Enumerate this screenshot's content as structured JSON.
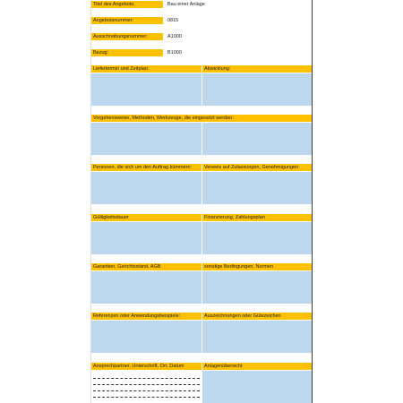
{
  "fields": [
    {
      "label": "Titel des Angebots:",
      "value": "Bau einer Anlage"
    },
    {
      "label": "Angebotsnummer:",
      "value": "0815"
    },
    {
      "label": "Ausschreibungsnummer:",
      "value": "A1000"
    },
    {
      "label": "Bezug:",
      "value": "B1000"
    }
  ],
  "sections": [
    {
      "left": "Liefertermin und Zeitplan:",
      "right": "Abwicklung:"
    },
    {
      "full": "Vorgehensweise, Methoden, Werkzeuge, die eingesetzt werden:"
    },
    {
      "left": " Personen, die sich um den Auftrag kümmern:",
      "right": "Verweis auf Zulassungen, Genehmigungen"
    },
    {
      "left": "Gültigkeitsdauer",
      "right": "Finanzierung, Zahlungsplan"
    },
    {
      "left": "Garantien, Gerichtsstand, AGB",
      "right": "sonstige Bedingungen, Normen"
    },
    {
      "left": "Referenzen oder Anwendungsbeispiele:",
      "right": "Auszeichnungen oder Gütezeichen"
    },
    {
      "left": " Ansprechpartner, Unterschrift, Ort, Datum",
      "right": "Anlagenübersicht"
    }
  ]
}
